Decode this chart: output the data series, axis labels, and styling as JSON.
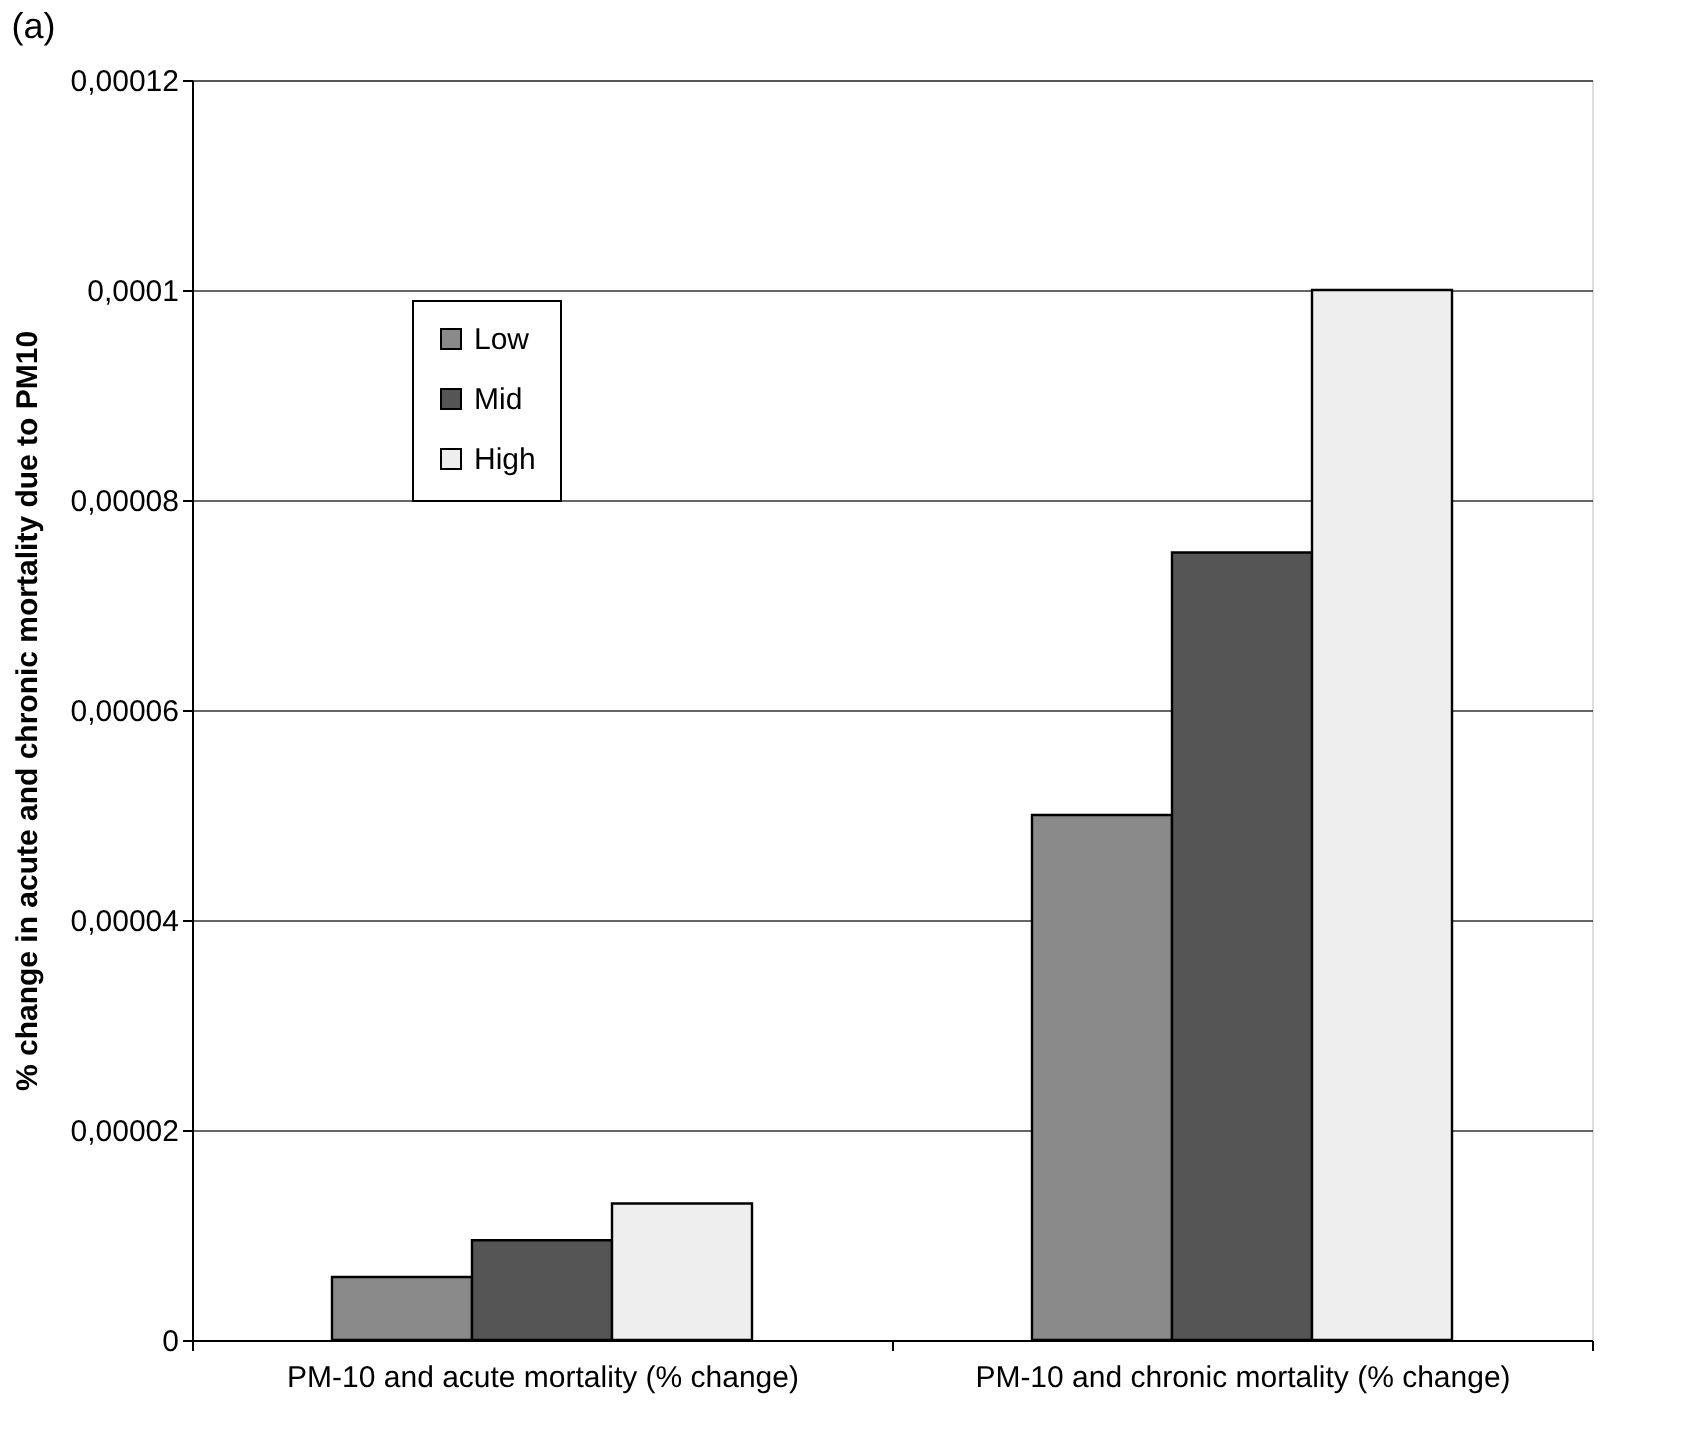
{
  "chart_data": {
    "type": "bar",
    "title": "(a)",
    "ylabel": "% change in acute and chronic mortality due to PM10",
    "categories": [
      "PM-10 and acute mortality (% change)",
      "PM-10 and chronic mortality (% change)"
    ],
    "series": [
      {
        "name": "Low",
        "color": "#8a8a8a",
        "values": [
          6e-06,
          5e-05
        ]
      },
      {
        "name": "Mid",
        "color": "#555555",
        "values": [
          9.5e-06,
          7.5e-05
        ]
      },
      {
        "name": "High",
        "color": "#eeeeee",
        "values": [
          1.3e-05,
          0.0001
        ]
      }
    ],
    "ylim": [
      0,
      0.00012
    ],
    "yticks": [
      {
        "value": 0,
        "label": "0"
      },
      {
        "value": 2e-05,
        "label": "0,00002"
      },
      {
        "value": 4e-05,
        "label": "0,00004"
      },
      {
        "value": 6e-05,
        "label": "0,00006"
      },
      {
        "value": 8e-05,
        "label": "0,00008"
      },
      {
        "value": 0.0001,
        "label": "0,0001"
      },
      {
        "value": 0.00012,
        "label": "0,00012"
      }
    ],
    "grid": "y",
    "legend": "top left"
  }
}
